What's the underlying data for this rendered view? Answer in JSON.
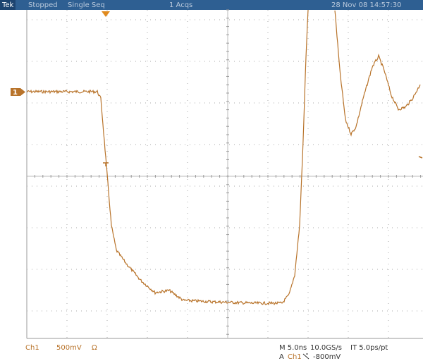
{
  "header": {
    "brand": "Tek",
    "status": "Stopped",
    "mode": "Single Seq",
    "acquisitions": "1 Acqs",
    "timestamp": "28 Nov 08 14:57:30"
  },
  "channel_marker": "1",
  "footer": {
    "channel": "Ch1",
    "scale": "500mV",
    "coupling": "Ω",
    "timebase": "M 5.0ns",
    "sample_rate": "10.0GS/s",
    "interpolation": "IT 5.0ps/pt",
    "trigger_prefix": "A",
    "trigger_channel": "Ch1",
    "trigger_level": "-800mV"
  }
}
